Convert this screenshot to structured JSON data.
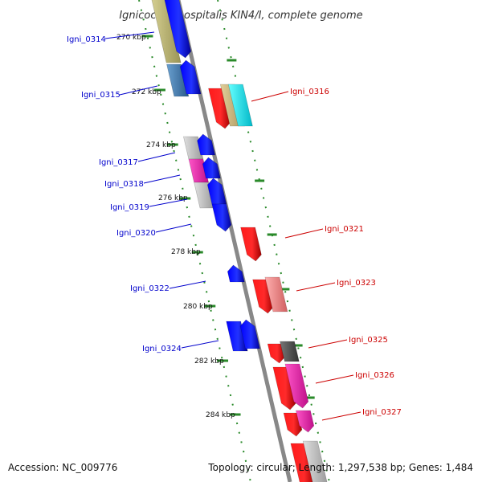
{
  "title": "Ignicoccus hospitalis KIN4/I, complete genome",
  "footer": {
    "accession": "Accession: NC_009776",
    "summary": "Topology: circular; Length: 1,297,538 bp; Genes: 1,484"
  },
  "ticks": [
    "270 kbp",
    "272 kbp",
    "274 kbp",
    "276 kbp",
    "278 kbp",
    "280 kbp",
    "282 kbp",
    "284 kbp"
  ],
  "genes_left": [
    "Igni_0314",
    "Igni_0315",
    "Igni_0317",
    "Igni_0318",
    "Igni_0319",
    "Igni_0320",
    "Igni_0322",
    "Igni_0324"
  ],
  "genes_right": [
    "Igni_0316",
    "Igni_0321",
    "Igni_0323",
    "Igni_0325",
    "Igni_0326",
    "Igni_0327"
  ],
  "colors": {
    "forward_strand": "#0000ee",
    "reverse_strand": "#ee0000",
    "backbone": "#888888",
    "gc_dots": "#2a8a2a"
  }
}
